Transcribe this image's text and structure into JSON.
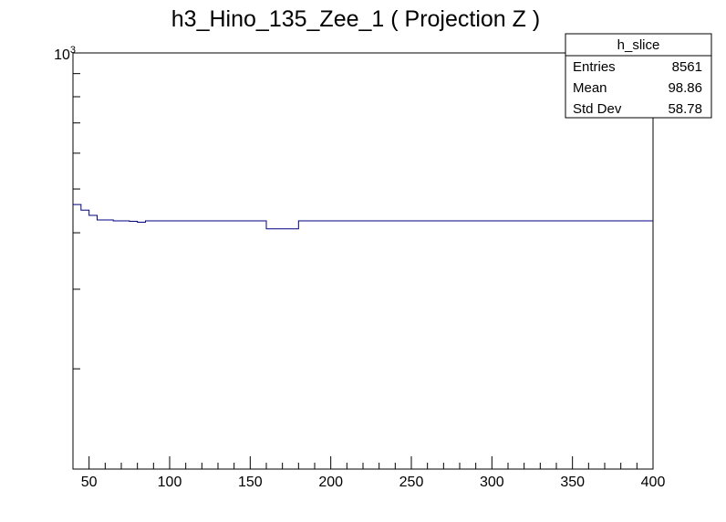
{
  "chart_data": {
    "type": "histogram",
    "title": "h3_Hino_135_Zee_1 ( Projection Z )",
    "xlabel": "",
    "ylabel": "",
    "xlim": [
      40,
      400
    ],
    "ylim": [
      120,
      1000
    ],
    "y_scale": "log",
    "grid": false,
    "x_ticks": [
      50,
      100,
      150,
      200,
      250,
      300,
      350,
      400
    ],
    "y_tick_label": {
      "base": "10",
      "exponent": "3",
      "value": 1000
    },
    "line_color": "#000080",
    "bin_edges": [
      40,
      45,
      50,
      55,
      60,
      65,
      70,
      75,
      80,
      85,
      90,
      95,
      100,
      160,
      180,
      200,
      400
    ],
    "values": [
      462,
      449,
      437,
      427,
      427,
      425,
      425,
      424,
      422,
      425,
      425,
      425,
      425,
      408,
      425,
      425
    ],
    "stats_box": {
      "name": "h_slice",
      "rows": [
        {
          "label": "Entries",
          "value": "8561"
        },
        {
          "label": "Mean",
          "value": "98.86"
        },
        {
          "label": "Std Dev",
          "value": "58.78"
        }
      ]
    }
  }
}
